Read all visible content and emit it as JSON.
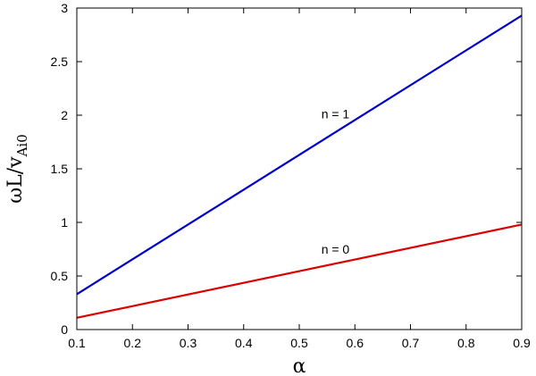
{
  "chart_data": {
    "type": "line",
    "title": "",
    "xlabel": "α",
    "ylabel": {
      "main": "ωL/v",
      "subscript": "Ai0"
    },
    "xlim": [
      0.1,
      0.9
    ],
    "ylim": [
      0,
      3
    ],
    "xticks": [
      {
        "value": 0.1,
        "label": "0.1"
      },
      {
        "value": 0.2,
        "label": "0.2"
      },
      {
        "value": 0.3,
        "label": "0.3"
      },
      {
        "value": 0.4,
        "label": "0.4"
      },
      {
        "value": 0.5,
        "label": "0.5"
      },
      {
        "value": 0.6,
        "label": "0.6"
      },
      {
        "value": 0.7,
        "label": "0.7"
      },
      {
        "value": 0.8,
        "label": "0.8"
      },
      {
        "value": 0.9,
        "label": "0.9"
      }
    ],
    "yticks": [
      {
        "value": 0,
        "label": "0"
      },
      {
        "value": 0.5,
        "label": "0.5"
      },
      {
        "value": 1,
        "label": "1"
      },
      {
        "value": 1.5,
        "label": "1.5"
      },
      {
        "value": 2,
        "label": "2"
      },
      {
        "value": 2.5,
        "label": "2.5"
      },
      {
        "value": 3,
        "label": "3"
      }
    ],
    "grid": false,
    "legend": "none",
    "series": [
      {
        "name": "n = 1",
        "color": "#0000cc",
        "x": [
          0.1,
          0.9
        ],
        "y": [
          0.33,
          2.93
        ],
        "label_at": {
          "x": 0.565,
          "y": 1.97
        }
      },
      {
        "name": "n = 0",
        "color": "#dd0000",
        "x": [
          0.1,
          0.9
        ],
        "y": [
          0.11,
          0.98
        ],
        "label_at": {
          "x": 0.565,
          "y": 0.71
        }
      }
    ]
  }
}
